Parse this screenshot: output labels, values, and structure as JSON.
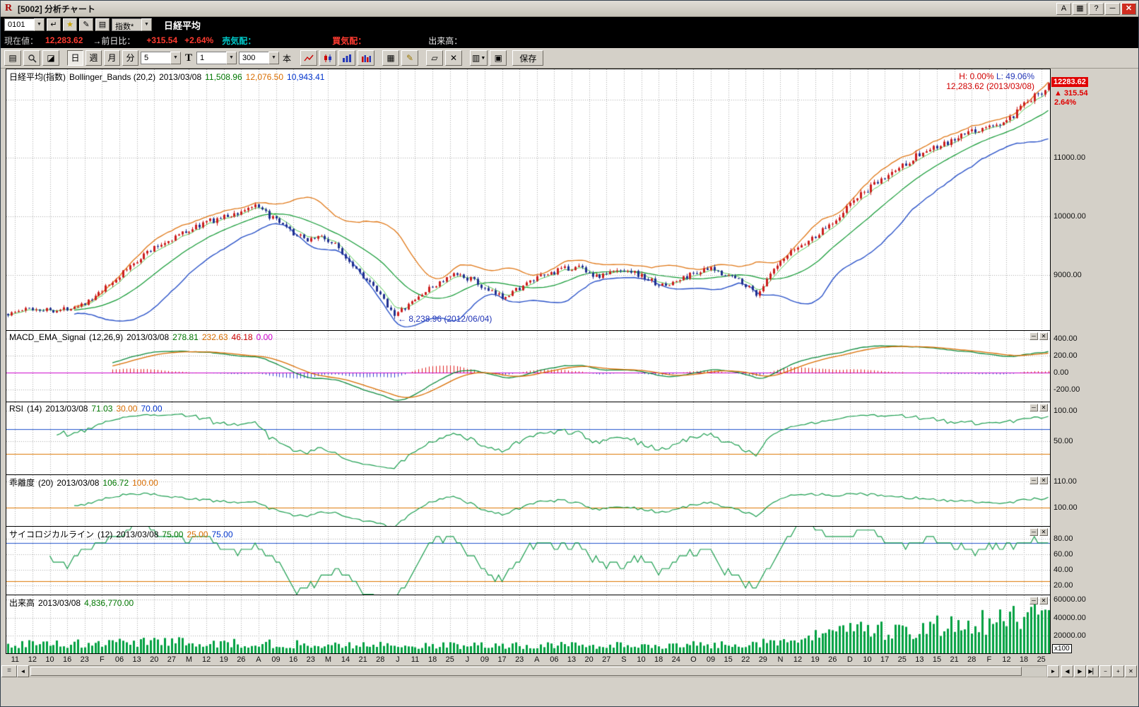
{
  "window": {
    "title": "[5002]  分析チャート",
    "buttons": {
      "font": "A",
      "help": "?"
    }
  },
  "icons": {
    "app": "R",
    "layout": "▦",
    "minimize": "─",
    "close": "✕",
    "dropdown": "▼",
    "enter": "↵",
    "favorite": "★",
    "edit": "✎",
    "list": "▤",
    "page": "▤",
    "page2": "◪",
    "grid": "▦",
    "pencil": "✎",
    "eraser": "▱",
    "delete": "✕",
    "copy": "▥",
    "sheet": "▣",
    "minimize_small": "─",
    "close_small": "✕",
    "scroll_left": "◄",
    "scroll_right": "►",
    "step_left": "◀",
    "step_right": "▶",
    "step_end": "▶▏",
    "zoom_out": "−",
    "zoom_in": "+",
    "close_box": "✕",
    "grip": "≡",
    "up_arrow": "▲"
  },
  "toolbar1": {
    "code_value": "0101",
    "index_select": "指数*",
    "symbol_name": "日経平均"
  },
  "quote": {
    "current_label": "現在値：",
    "current_value": "12,283.62",
    "change_label": "→前日比：",
    "change_value": "+315.54",
    "change_pct": "+2.64%",
    "ask_label": "売気配：",
    "bid_label": "買気配：",
    "volume_label": "出来高："
  },
  "toolbar2": {
    "period_buttons": [
      "日",
      "週",
      "月",
      "分"
    ],
    "minutes_value": "5",
    "t_label": "T",
    "interval_value": "1",
    "bars_value": "300",
    "bars_unit": "本",
    "save_label": "保存"
  },
  "panels": {
    "main": {
      "name": "日経平均(指数)",
      "sub": "Bollinger_Bands (20,2)",
      "date": "2013/03/08",
      "values": [
        {
          "text": "11,508.96",
          "color": "green"
        },
        {
          "text": "12,076.50",
          "color": "orange"
        },
        {
          "text": "10,943.41",
          "color": "blue"
        }
      ],
      "hl_h": "H: 0.00%",
      "hl_l": "L: 49.06%",
      "peak_annotation": "12,283.62 (2013/03/08)",
      "low_annotation": "← 8,238.96 (2012/06/04)",
      "price_box": {
        "price": "12283.62",
        "change": "315.54",
        "pct": "2.64%"
      },
      "axis": [
        {
          "v": 11000,
          "label": "11000.00"
        },
        {
          "v": 10000,
          "label": "10000.00"
        },
        {
          "v": 9000,
          "label": "9000.00"
        }
      ]
    },
    "macd": {
      "name": "MACD_EMA_Signal",
      "sub": "(12,26,9)",
      "date": "2013/03/08",
      "values": [
        {
          "text": "278.81",
          "color": "green"
        },
        {
          "text": "232.63",
          "color": "orange"
        },
        {
          "text": "46.18",
          "color": "red"
        },
        {
          "text": "0.00",
          "color": "magenta"
        }
      ],
      "axis": [
        {
          "v": 400,
          "label": "400.00"
        },
        {
          "v": 200,
          "label": "200.00"
        },
        {
          "v": 0,
          "label": "0.00"
        },
        {
          "v": -200,
          "label": "-200.00"
        }
      ]
    },
    "rsi": {
      "name": "RSI",
      "sub": "(14)",
      "date": "2013/03/08",
      "values": [
        {
          "text": "71.03",
          "color": "green"
        },
        {
          "text": "30.00",
          "color": "orange"
        },
        {
          "text": "70.00",
          "color": "blue"
        }
      ],
      "axis": [
        {
          "v": 100,
          "label": "100.00"
        },
        {
          "v": 50,
          "label": "50.00"
        }
      ]
    },
    "kairi": {
      "name": "乖離度",
      "sub": "(20)",
      "date": "2013/03/08",
      "values": [
        {
          "text": "106.72",
          "color": "green"
        },
        {
          "text": "100.00",
          "color": "orange"
        }
      ],
      "axis": [
        {
          "v": 110,
          "label": "110.00"
        },
        {
          "v": 100,
          "label": "100.00"
        }
      ]
    },
    "psych": {
      "name": "サイコロジカルライン",
      "sub": "(12)",
      "date": "2013/03/08",
      "values": [
        {
          "text": "75.00",
          "color": "green"
        },
        {
          "text": "25.00",
          "color": "orange"
        },
        {
          "text": "75.00",
          "color": "blue"
        }
      ],
      "axis": [
        {
          "v": 80,
          "label": "80.00"
        },
        {
          "v": 60,
          "label": "60.00"
        },
        {
          "v": 40,
          "label": "40.00"
        },
        {
          "v": 20,
          "label": "20.00"
        }
      ]
    },
    "volume": {
      "name": "出来高",
      "sub": "",
      "date": "2013/03/08",
      "values": [
        {
          "text": "4,836,770.00",
          "color": "green"
        }
      ],
      "axis": [
        {
          "v": 60000,
          "label": "60000.00"
        },
        {
          "v": 40000,
          "label": "40000.00"
        },
        {
          "v": 20000,
          "label": "20000.00"
        }
      ],
      "multiplier": "x100"
    }
  },
  "value_colors": {
    "green": "#007700",
    "orange": "#d96d00",
    "blue": "#0033cc",
    "red": "#cc0000",
    "magenta": "#cc00cc"
  },
  "xaxis": [
    "11",
    "12",
    "10",
    "16",
    "23",
    "F",
    "06",
    "13",
    "20",
    "27",
    "M",
    "12",
    "19",
    "26",
    "A",
    "09",
    "16",
    "23",
    "M",
    "14",
    "21",
    "28",
    "J",
    "11",
    "18",
    "25",
    "J",
    "09",
    "17",
    "23",
    "A",
    "06",
    "13",
    "20",
    "27",
    "S",
    "10",
    "18",
    "24",
    "O",
    "09",
    "15",
    "22",
    "29",
    "N",
    "12",
    "19",
    "26",
    "D",
    "10",
    "17",
    "25",
    "13",
    "15",
    "21",
    "28",
    "F",
    "12",
    "18",
    "25"
  ],
  "chart_data": {
    "type": "candlestick+indicators",
    "bars": 300,
    "seed": 1337,
    "last_close": 12283.62,
    "low_mark": {
      "t": 0.372,
      "value": 8238.96
    },
    "last_volume": 48368,
    "price_keypoints": [
      [
        0,
        8330
      ],
      [
        0.02,
        8420
      ],
      [
        0.05,
        8390
      ],
      [
        0.08,
        8560
      ],
      [
        0.105,
        8950
      ],
      [
        0.13,
        9350
      ],
      [
        0.16,
        9650
      ],
      [
        0.19,
        9900
      ],
      [
        0.22,
        10050
      ],
      [
        0.235,
        10180
      ],
      [
        0.25,
        10020
      ],
      [
        0.27,
        9750
      ],
      [
        0.285,
        9600
      ],
      [
        0.3,
        9660
      ],
      [
        0.315,
        9500
      ],
      [
        0.335,
        9100
      ],
      [
        0.355,
        8700
      ],
      [
        0.372,
        8310
      ],
      [
        0.385,
        8480
      ],
      [
        0.4,
        8700
      ],
      [
        0.415,
        8870
      ],
      [
        0.43,
        9000
      ],
      [
        0.445,
        8930
      ],
      [
        0.46,
        8720
      ],
      [
        0.475,
        8620
      ],
      [
        0.49,
        8760
      ],
      [
        0.51,
        8950
      ],
      [
        0.53,
        9080
      ],
      [
        0.55,
        9140
      ],
      [
        0.565,
        8960
      ],
      [
        0.58,
        9040
      ],
      [
        0.595,
        9100
      ],
      [
        0.61,
        8960
      ],
      [
        0.63,
        8800
      ],
      [
        0.645,
        8910
      ],
      [
        0.66,
        9040
      ],
      [
        0.675,
        9090
      ],
      [
        0.69,
        9010
      ],
      [
        0.705,
        8890
      ],
      [
        0.72,
        8660
      ],
      [
        0.735,
        9060
      ],
      [
        0.755,
        9420
      ],
      [
        0.775,
        9650
      ],
      [
        0.795,
        9940
      ],
      [
        0.815,
        10320
      ],
      [
        0.835,
        10560
      ],
      [
        0.855,
        10820
      ],
      [
        0.875,
        11060
      ],
      [
        0.89,
        11160
      ],
      [
        0.905,
        11260
      ],
      [
        0.92,
        11410
      ],
      [
        0.935,
        11500
      ],
      [
        0.95,
        11560
      ],
      [
        0.965,
        11680
      ],
      [
        0.978,
        11930
      ],
      [
        0.99,
        12090
      ],
      [
        1,
        12260
      ]
    ],
    "volume_keypoints": [
      [
        0,
        9500
      ],
      [
        0.08,
        11000
      ],
      [
        0.16,
        12500
      ],
      [
        0.24,
        10500
      ],
      [
        0.32,
        9000
      ],
      [
        0.4,
        8200
      ],
      [
        0.48,
        8800
      ],
      [
        0.56,
        8300
      ],
      [
        0.64,
        8800
      ],
      [
        0.7,
        9500
      ],
      [
        0.74,
        13000
      ],
      [
        0.78,
        19000
      ],
      [
        0.82,
        24000
      ],
      [
        0.86,
        27000
      ],
      [
        0.9,
        30000
      ],
      [
        0.94,
        33000
      ],
      [
        0.97,
        36000
      ],
      [
        1,
        42000
      ]
    ],
    "panel_scales": {
      "main": {
        "range": [
          8050,
          12520
        ],
        "grid": [
          9000,
          10000,
          11000,
          12000
        ]
      },
      "macd": {
        "range": [
          -340,
          490
        ],
        "grid": [
          -200,
          200,
          400
        ],
        "hlines": [
          {
            "v": 0,
            "c": "#cc00cc"
          }
        ]
      },
      "rsi": {
        "range": [
          -4,
          114
        ],
        "grid": [
          50,
          100
        ],
        "hlines": [
          {
            "v": 70,
            "c": "#2255cc"
          },
          {
            "v": 30,
            "c": "#dd7700"
          }
        ]
      },
      "kairi": {
        "range": [
          92.8,
          112.5
        ],
        "grid": [
          110
        ],
        "hlines": [
          {
            "v": 100,
            "c": "#dd7700"
          }
        ]
      },
      "psych": {
        "range": [
          8,
          96
        ],
        "grid": [
          20,
          40,
          60,
          80
        ],
        "hlines": [
          {
            "v": 75,
            "c": "#2255cc"
          },
          {
            "v": 25,
            "c": "#dd7700"
          }
        ]
      },
      "volume": {
        "range": [
          0,
          65000
        ],
        "grid": [
          20000,
          40000,
          60000
        ]
      }
    },
    "style": {
      "up": "#cc1e1e",
      "down": "#20308f",
      "band_up": "#e07818",
      "band_mid": "#119933",
      "band_low": "#2a52c8",
      "ema": "#55cc55",
      "macd": "#0d8a3d",
      "signal": "#d96d00",
      "hist_pos": "#dd2222",
      "hist_neg": "#3344cc",
      "rsi": "#1d9e50",
      "kairi": "#1d9e50",
      "psych": "#1d9e50",
      "volume": "#00a040",
      "grid": "#aaaaaa"
    }
  }
}
